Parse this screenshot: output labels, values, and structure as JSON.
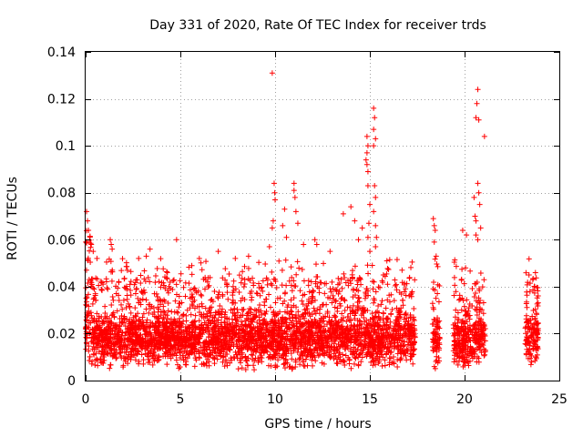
{
  "chart_data": {
    "type": "scatter",
    "title": "Day 331 of 2020, Rate Of TEC Index for receiver trds",
    "xlabel": "GPS time / hours",
    "ylabel": "ROTI / TECUs",
    "xlim": [
      0,
      25
    ],
    "ylim": [
      0,
      0.14
    ],
    "x_ticks": [
      0,
      5,
      10,
      15,
      20,
      25
    ],
    "y_ticks": [
      0,
      0.02,
      0.04,
      0.06,
      0.08,
      0.1,
      0.12,
      0.14
    ],
    "x_tick_labels": [
      "0",
      "5",
      "10",
      "15",
      "20",
      "25"
    ],
    "y_tick_labels": [
      "0",
      "0.02",
      "0.04",
      "0.06",
      "0.08",
      "0.1",
      "0.12",
      "0.14"
    ],
    "grid": true,
    "marker": "+",
    "color": "#ff0000",
    "data_segments": [
      [
        0,
        17.4
      ],
      [
        18.3,
        18.7
      ],
      [
        19.4,
        21.1
      ],
      [
        23.2,
        23.9
      ]
    ],
    "series": [
      {
        "name": "ROTI",
        "notable_points": [
          {
            "x": 0.05,
            "y": 0.072
          },
          {
            "x": 0.1,
            "y": 0.068
          },
          {
            "x": 0.15,
            "y": 0.064
          },
          {
            "x": 0.3,
            "y": 0.058
          },
          {
            "x": 0.4,
            "y": 0.055
          },
          {
            "x": 0.6,
            "y": 0.052
          },
          {
            "x": 1.3,
            "y": 0.06
          },
          {
            "x": 1.35,
            "y": 0.058
          },
          {
            "x": 1.4,
            "y": 0.056
          },
          {
            "x": 2.8,
            "y": 0.052
          },
          {
            "x": 3.2,
            "y": 0.053
          },
          {
            "x": 3.4,
            "y": 0.056
          },
          {
            "x": 4.8,
            "y": 0.06
          },
          {
            "x": 6.0,
            "y": 0.052
          },
          {
            "x": 7.0,
            "y": 0.055
          },
          {
            "x": 7.9,
            "y": 0.052
          },
          {
            "x": 8.6,
            "y": 0.053
          },
          {
            "x": 9.85,
            "y": 0.131
          },
          {
            "x": 9.95,
            "y": 0.084
          },
          {
            "x": 9.98,
            "y": 0.08
          },
          {
            "x": 10.0,
            "y": 0.077
          },
          {
            "x": 9.9,
            "y": 0.068
          },
          {
            "x": 9.85,
            "y": 0.065
          },
          {
            "x": 9.7,
            "y": 0.057
          },
          {
            "x": 10.5,
            "y": 0.073
          },
          {
            "x": 10.4,
            "y": 0.066
          },
          {
            "x": 10.6,
            "y": 0.061
          },
          {
            "x": 11.0,
            "y": 0.084
          },
          {
            "x": 11.0,
            "y": 0.081
          },
          {
            "x": 11.05,
            "y": 0.078
          },
          {
            "x": 11.1,
            "y": 0.072
          },
          {
            "x": 11.2,
            "y": 0.067
          },
          {
            "x": 11.5,
            "y": 0.058
          },
          {
            "x": 12.1,
            "y": 0.06
          },
          {
            "x": 12.2,
            "y": 0.058
          },
          {
            "x": 12.9,
            "y": 0.055
          },
          {
            "x": 13.6,
            "y": 0.071
          },
          {
            "x": 14.0,
            "y": 0.074
          },
          {
            "x": 14.2,
            "y": 0.068
          },
          {
            "x": 14.4,
            "y": 0.06
          },
          {
            "x": 14.6,
            "y": 0.065
          },
          {
            "x": 14.85,
            "y": 0.104
          },
          {
            "x": 14.9,
            "y": 0.1
          },
          {
            "x": 14.85,
            "y": 0.097
          },
          {
            "x": 14.8,
            "y": 0.094
          },
          {
            "x": 14.85,
            "y": 0.092
          },
          {
            "x": 14.9,
            "y": 0.089
          },
          {
            "x": 14.9,
            "y": 0.083
          },
          {
            "x": 15.0,
            "y": 0.075
          },
          {
            "x": 14.95,
            "y": 0.067
          },
          {
            "x": 14.9,
            "y": 0.061
          },
          {
            "x": 15.0,
            "y": 0.055
          },
          {
            "x": 15.2,
            "y": 0.116
          },
          {
            "x": 15.25,
            "y": 0.112
          },
          {
            "x": 15.2,
            "y": 0.107
          },
          {
            "x": 15.3,
            "y": 0.103
          },
          {
            "x": 15.2,
            "y": 0.1
          },
          {
            "x": 15.25,
            "y": 0.083
          },
          {
            "x": 15.3,
            "y": 0.078
          },
          {
            "x": 15.2,
            "y": 0.072
          },
          {
            "x": 15.3,
            "y": 0.066
          },
          {
            "x": 15.35,
            "y": 0.061
          },
          {
            "x": 15.3,
            "y": 0.057
          },
          {
            "x": 15.9,
            "y": 0.051
          },
          {
            "x": 16.7,
            "y": 0.047
          },
          {
            "x": 18.35,
            "y": 0.069
          },
          {
            "x": 18.4,
            "y": 0.066
          },
          {
            "x": 18.45,
            "y": 0.064
          },
          {
            "x": 18.4,
            "y": 0.059
          },
          {
            "x": 18.5,
            "y": 0.053
          },
          {
            "x": 19.9,
            "y": 0.064
          },
          {
            "x": 20.1,
            "y": 0.062
          },
          {
            "x": 20.5,
            "y": 0.078
          },
          {
            "x": 20.55,
            "y": 0.07
          },
          {
            "x": 20.6,
            "y": 0.068
          },
          {
            "x": 20.6,
            "y": 0.062
          },
          {
            "x": 20.7,
            "y": 0.06
          },
          {
            "x": 20.7,
            "y": 0.124
          },
          {
            "x": 20.65,
            "y": 0.118
          },
          {
            "x": 20.6,
            "y": 0.112
          },
          {
            "x": 20.75,
            "y": 0.111
          },
          {
            "x": 20.7,
            "y": 0.084
          },
          {
            "x": 20.75,
            "y": 0.08
          },
          {
            "x": 20.8,
            "y": 0.075
          },
          {
            "x": 20.85,
            "y": 0.065
          },
          {
            "x": 21.05,
            "y": 0.104
          },
          {
            "x": 23.4,
            "y": 0.045
          },
          {
            "x": 23.6,
            "y": 0.043
          },
          {
            "x": 23.7,
            "y": 0.04
          }
        ]
      }
    ]
  }
}
